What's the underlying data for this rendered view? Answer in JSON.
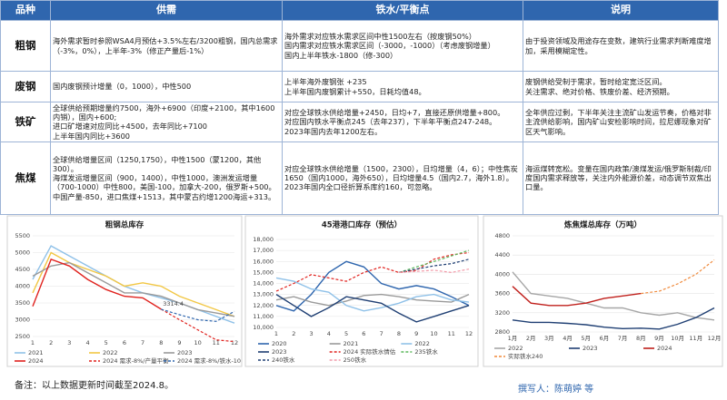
{
  "table": {
    "header": [
      "品种",
      "供需",
      "铁水/平衡点",
      "说明"
    ],
    "rows": [
      [
        "粗钢",
        [
          "海外需求暂时参照WSA4月预估+3.5%左右/3200粗钢，国内总需求（-3%，0%），上半年-3%（修正产量后-1%）"
        ],
        [
          "海外需求对应铁水需求区间中性1500左右（按废钢50%）",
          "国内需求对应铁水需求区间（-3000，-1000）（考虑废钢增量）",
          "国内上半年铁水-1800（修-300）"
        ],
        [
          "由于投资领域及用途存在变数，建筑行业需求判断难度增加，采用模糊定性。"
        ]
      ],
      [
        "废钢",
        [
          "国内废钢预计增量（0，1000），中性500"
        ],
        [
          "上半年海外废钢张 +235",
          "上半年国内废钢累计+550，日耗均值48。"
        ],
        [
          "废钢供给受制于需求，暂时给定宽泛区间。",
          "关注需求、绝对价格、铁废价差、经济预期。"
        ]
      ],
      [
        "铁矿",
        [
          "全球供给预期增量约7500，海外+6900（印度+2100，其中1600内销），国内+600;",
          "进口矿增速对应同比+4500，去年同比+7100",
          "上半年国内同比+3600"
        ],
        [
          "对应全球铁水供给增量+2450，日均+7，直接还原供增量+800。",
          "对应国内铁水平衡点245（去年237），下半年平衡点247-248。",
          "2023年国内去年1200左右。"
        ],
        [
          "全年供应过剩，下半年关注主流矿山发运节奏，价格对非主流供给影响，国内矿山安检影响时间，拉尼娜现象对矿区天气影响。"
        ]
      ],
      [
        "焦煤",
        [
          "全球供给增量区间（1250,1750），中性1500（蒙1200，其他300）。",
          "海煤发运增量区间（900，1400），中性1000，澳洲发运增量（700-1000）中性800，美国-100，加拿大-200，俄罗斯+500。",
          "中国产量-850，进口焦煤+1513，其中蒙古约增1200海运+313。"
        ],
        [
          "对应全球铁水供给增量（1500，2300），日均增量（4，6）；中性焦炭1650（国内1000，海外650），日均增量4.5（国内2.7，海外1.8）。",
          "2023年国内全口径折算系库约160，可忽略。"
        ],
        [
          "海运煤转宽松。变量在国内政策/澳煤发运/俄罗斯制裁/印度国内需求释放等，关注内外能源价差，动态调节双焦出口量。"
        ]
      ]
    ]
  },
  "chart_data": [
    {
      "type": "line",
      "title": "粗钢总库存",
      "categories": [
        "1",
        "2",
        "3",
        "4",
        "5",
        "6",
        "7",
        "8",
        "9",
        "10",
        "11",
        "12"
      ],
      "ylim": [
        2500,
        5500
      ],
      "yticks": [
        2500,
        3000,
        3500,
        4000,
        4500,
        5000,
        5500
      ],
      "grid": true,
      "series": [
        {
          "name": "2021",
          "color": "#8fc1e8",
          "values": [
            4200,
            5200,
            4900,
            4600,
            4300,
            4000,
            3800,
            3650,
            3500,
            3300,
            3100,
            2900
          ]
        },
        {
          "name": "2022",
          "color": "#f2c744",
          "values": [
            3800,
            5000,
            4700,
            4500,
            4300,
            4000,
            4100,
            4000,
            3700,
            3500,
            3300,
            3100
          ]
        },
        {
          "name": "2023",
          "color": "#9a9a9a",
          "values": [
            4300,
            4600,
            4700,
            4400,
            4100,
            3800,
            3800,
            3700,
            3500,
            3300,
            3200,
            3100
          ]
        },
        {
          "name": "2024",
          "color": "#e0221e",
          "values": [
            3400,
            4800,
            4600,
            4200,
            3900,
            3700,
            3650,
            3314.4,
            null,
            null,
            null,
            null
          ],
          "label_last": true
        },
        {
          "name": "2024 需求-8%/产量平衡",
          "color": "#e0221e",
          "dashed": true,
          "values": [
            null,
            null,
            null,
            null,
            null,
            null,
            null,
            3314.4,
            3000,
            2700,
            2400,
            2350
          ]
        },
        {
          "name": "2024 需求-8%/铁水-10",
          "color": "#2f66ae",
          "dashed": true,
          "values": [
            null,
            null,
            null,
            null,
            null,
            null,
            null,
            3314.4,
            3150,
            3000,
            2950,
            3250
          ]
        }
      ]
    },
    {
      "type": "line",
      "title": "45港港口库存（预估）",
      "categories": [
        "1",
        "2",
        "3",
        "4",
        "5",
        "6",
        "7",
        "8",
        "9",
        "10",
        "11",
        "12"
      ],
      "ylim": [
        10000,
        18000
      ],
      "yticks": [
        {
          "value": 10000,
          "label": "10,000"
        },
        {
          "value": 11000,
          "label": "11,000"
        },
        {
          "value": 12000,
          "label": "12,000"
        },
        {
          "value": 13000,
          "label": "13,000"
        },
        {
          "value": 14000,
          "label": "14,000"
        },
        {
          "value": 15000,
          "label": "15,000"
        },
        {
          "value": 16000,
          "label": "16,000"
        },
        {
          "value": 17000,
          "label": "17,000"
        },
        {
          "value": 18000,
          "label": "18,000"
        }
      ],
      "grid": true,
      "series": [
        {
          "name": "2020",
          "color": "#2f66ae",
          "values": [
            12000,
            11500,
            13000,
            15000,
            16000,
            15500,
            14000,
            13500,
            13800,
            13500,
            12800,
            12000
          ]
        },
        {
          "name": "2021",
          "color": "#9a9a9a",
          "values": [
            12500,
            12800,
            12300,
            12000,
            12400,
            12900,
            13000,
            12800,
            12500,
            12400,
            12300,
            13000
          ]
        },
        {
          "name": "2022",
          "color": "#8fc1e8",
          "values": [
            14500,
            14200,
            13500,
            13200,
            12000,
            11500,
            11800,
            12200,
            12800,
            13000,
            12500,
            12300
          ]
        },
        {
          "name": "2023",
          "color": "#1f3f73",
          "values": [
            13000,
            12000,
            11000,
            11800,
            12800,
            12500,
            12200,
            11300,
            10500,
            11000,
            11500,
            12000
          ]
        },
        {
          "name": "2024 实际铁水情估",
          "color": "#e0221e",
          "dashed": true,
          "values": [
            13300,
            14000,
            14800,
            14500,
            14200,
            15000,
            15500,
            15000,
            15200,
            16200,
            16600,
            16800
          ]
        },
        {
          "name": "235铁水",
          "color": "#5cb85c",
          "dashed": true,
          "values": [
            null,
            null,
            null,
            null,
            null,
            null,
            null,
            15000,
            15500,
            16000,
            16500,
            17000
          ]
        },
        {
          "name": "240铁水",
          "color": "#1f3f73",
          "dashed": true,
          "values": [
            null,
            null,
            null,
            null,
            null,
            null,
            null,
            15000,
            15300,
            15600,
            15800,
            16200
          ]
        },
        {
          "name": "250铁水",
          "color": "#f29aa8",
          "dashed": true,
          "values": [
            null,
            null,
            null,
            null,
            null,
            null,
            null,
            15000,
            15100,
            15200,
            15000,
            15300
          ]
        }
      ]
    },
    {
      "type": "line",
      "title": "炼焦煤总库存（万吨）",
      "categories": [
        "1月",
        "2月",
        "3月",
        "4月",
        "5月",
        "6月",
        "7月",
        "8月",
        "9月",
        "10月",
        "11月",
        "12月"
      ],
      "ylim": [
        2800,
        4800
      ],
      "yticks": [
        2800,
        3200,
        3600,
        4000,
        4400,
        4800
      ],
      "grid": true,
      "series": [
        {
          "name": "2022",
          "color": "#a6a6a6",
          "values": [
            4050,
            3600,
            3550,
            3500,
            3400,
            3300,
            3300,
            3200,
            3150,
            3200,
            3100,
            3050
          ]
        },
        {
          "name": "2023",
          "color": "#1f3f73",
          "values": [
            3050,
            3000,
            3000,
            2980,
            2950,
            2900,
            2870,
            2880,
            2860,
            2960,
            3100,
            3300
          ]
        },
        {
          "name": "2024",
          "color": "#c0201c",
          "values": [
            3750,
            3400,
            3350,
            3350,
            3400,
            3500,
            3550,
            3600,
            null,
            null,
            null,
            null
          ]
        },
        {
          "name": "实际铁水240",
          "color": "#f08a3c",
          "dashed": true,
          "values": [
            null,
            null,
            null,
            null,
            null,
            null,
            null,
            3600,
            3650,
            3800,
            4000,
            4300
          ]
        }
      ]
    }
  ],
  "note": "备注：以上数据更新时间截至2024.8。",
  "author": "撰写人：陈萌婷 等"
}
